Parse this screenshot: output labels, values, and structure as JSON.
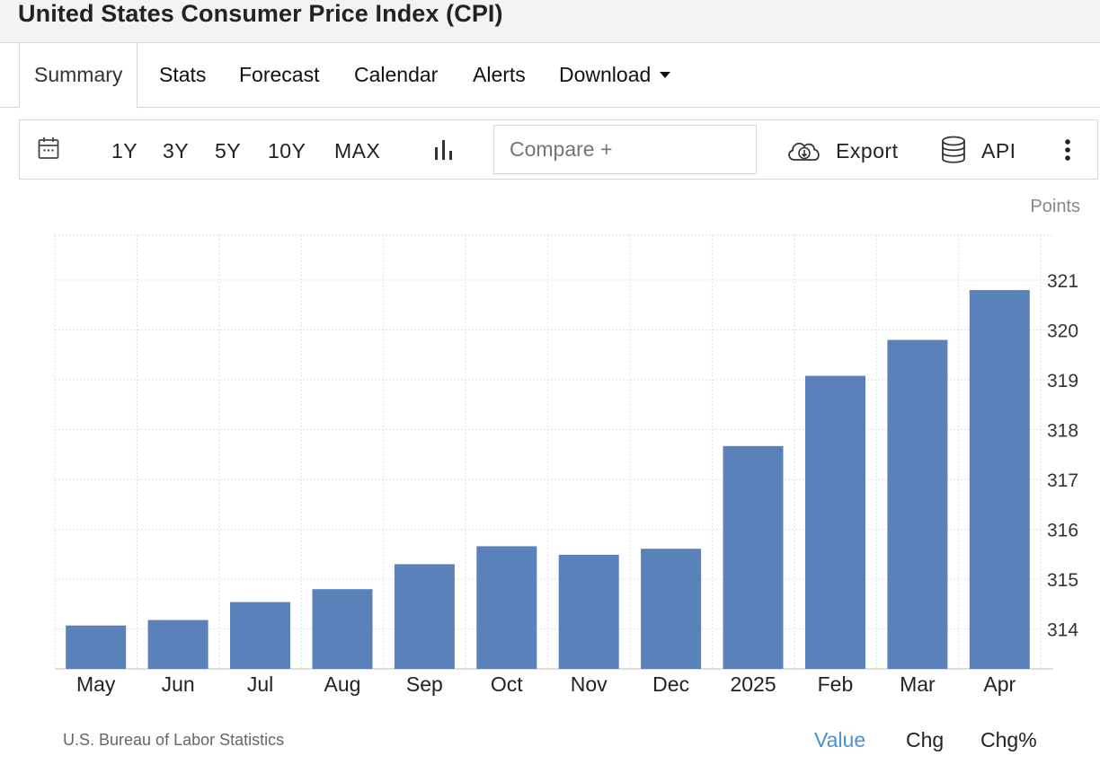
{
  "page": {
    "title": "United States Consumer Price Index (CPI)"
  },
  "tabs": [
    {
      "label": "Summary",
      "active": true
    },
    {
      "label": "Stats"
    },
    {
      "label": "Forecast"
    },
    {
      "label": "Calendar"
    },
    {
      "label": "Alerts"
    },
    {
      "label": "Download"
    }
  ],
  "toolbar": {
    "ranges": [
      "1Y",
      "3Y",
      "5Y",
      "10Y",
      "MAX"
    ],
    "compare_placeholder": "Compare +",
    "export_label": "Export",
    "api_label": "API",
    "icons": {
      "calendar": "calendar-icon",
      "chart_type": "bar-chart-icon",
      "export": "cloud-download-icon",
      "api": "database-icon",
      "more": "more-vertical-icon"
    }
  },
  "chart_data": {
    "type": "bar",
    "units_label": "Points",
    "categories": [
      "May",
      "Jun",
      "Jul",
      "Aug",
      "Sep",
      "Oct",
      "Nov",
      "Dec",
      "2025",
      "Feb",
      "Mar",
      "Apr"
    ],
    "values": [
      314.07,
      314.18,
      314.54,
      314.8,
      315.3,
      315.66,
      315.49,
      315.61,
      317.67,
      319.08,
      319.8,
      320.8
    ],
    "ylim": [
      313.2,
      321.9
    ],
    "yticks": [
      314,
      315,
      316,
      317,
      318,
      319,
      320,
      321
    ],
    "bar_color": "#5a81b9",
    "grid": true,
    "title": "",
    "xlabel": "",
    "ylabel": ""
  },
  "footer": {
    "source": "U.S. Bureau of Labor Statistics",
    "toggles": [
      {
        "label": "Value",
        "active": true
      },
      {
        "label": "Chg"
      },
      {
        "label": "Chg%"
      }
    ],
    "active_color": "#4a90d9"
  }
}
